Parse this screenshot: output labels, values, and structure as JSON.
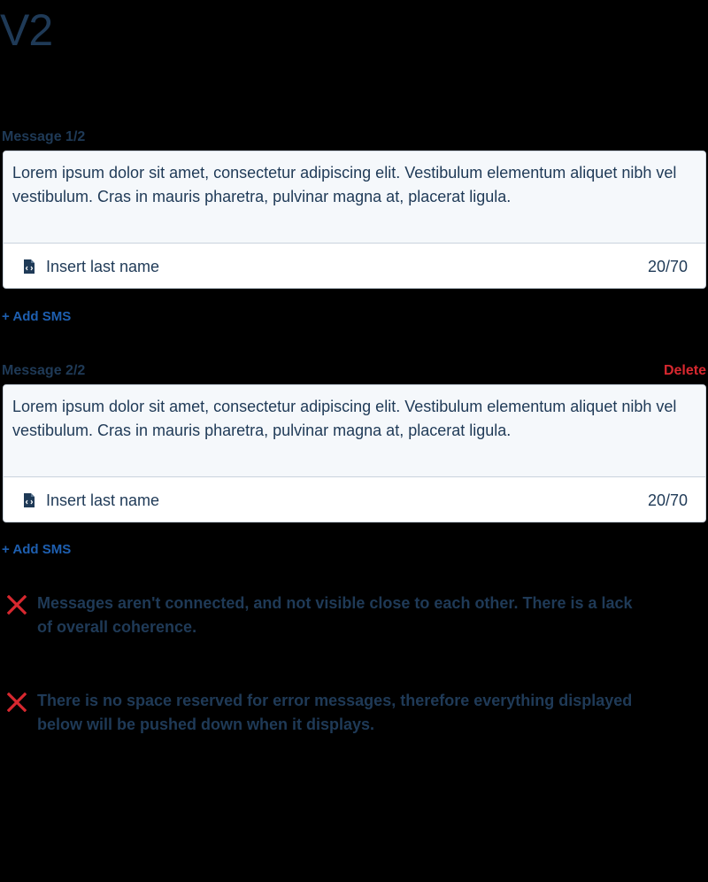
{
  "page_title": "V2",
  "messages": [
    {
      "label": "Message 1/2",
      "text": "Lorem ipsum dolor sit amet, consectetur adipiscing elit. Vestibulum elementum aliquet nibh vel vestibulum. Cras in mauris pharetra, pulvinar magna at, placerat ligula.",
      "insert_label": "Insert last name",
      "counter": "20/70",
      "add_label": "+ Add SMS"
    },
    {
      "label": "Message 2/2",
      "delete_label": "Delete",
      "text": "Lorem ipsum dolor sit amet, consectetur adipiscing elit. Vestibulum elementum aliquet nibh vel vestibulum. Cras in mauris pharetra, pulvinar magna at, placerat ligula.",
      "insert_label": "Insert last name",
      "counter": "20/70",
      "add_label": "+ Add SMS"
    }
  ],
  "notes": [
    {
      "icon": "x-icon",
      "text": "Messages aren't connected, and not visible close to each other. There is a lack of overall coherence."
    },
    {
      "icon": "x-icon",
      "text": "There is no space reserved for error messages, therefore everything displayed below will be pushed down when it displays."
    }
  ],
  "colors": {
    "text": "#1f3a57",
    "link": "#1e5fb0",
    "danger": "#d8282f",
    "field_bg": "#f5f8fb",
    "border": "#c9d3dd"
  }
}
